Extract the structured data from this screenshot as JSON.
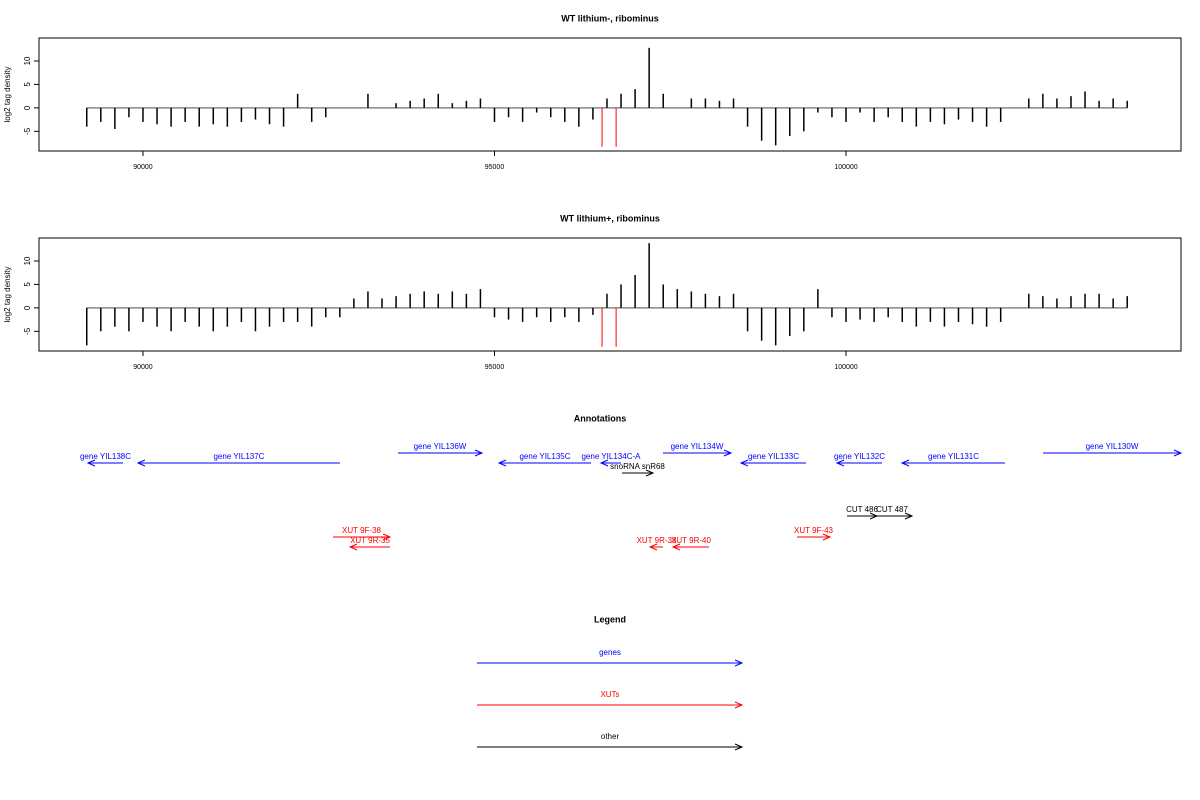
{
  "chart_data": [
    {
      "type": "bar",
      "title": "WT lithium-, ribominus",
      "y_label": "log2 tag density",
      "color": "#000000",
      "xlim": [
        88521,
        104765
      ],
      "ylim": [
        -9.2,
        14.9
      ],
      "xticks": [
        90000,
        95000,
        100000
      ],
      "yticks": [
        -5,
        0,
        5,
        10
      ],
      "x": [
        89200,
        89400,
        89600,
        89800,
        90000,
        90200,
        90400,
        90600,
        90800,
        91000,
        91200,
        91400,
        91600,
        91800,
        92000,
        92200,
        92400,
        92600,
        92800,
        93000,
        93200,
        93400,
        93600,
        93800,
        94000,
        94200,
        94400,
        94600,
        94800,
        95000,
        95200,
        95400,
        95600,
        95800,
        96000,
        96200,
        96400,
        96600,
        96800,
        97000,
        97200,
        97400,
        97600,
        97800,
        98000,
        98200,
        98400,
        98600,
        98800,
        99000,
        99200,
        99400,
        99600,
        99800,
        100000,
        100200,
        100400,
        100600,
        100800,
        101000,
        101200,
        101400,
        101600,
        101800,
        102000,
        102200,
        102400,
        102600,
        102800,
        103000,
        103200,
        103400,
        103600,
        103800,
        104000
      ],
      "values": [
        -4,
        -3,
        -4.5,
        -2,
        -3,
        -3.5,
        -4,
        -3,
        -4,
        -3.5,
        -4,
        -3,
        -2.5,
        -3.5,
        -4,
        3,
        -3,
        -2,
        0,
        0,
        3,
        0,
        1,
        1.5,
        2,
        3,
        1,
        1.5,
        2,
        -3,
        -2,
        -3,
        -1,
        -2,
        -3,
        -4,
        -2.5,
        2,
        3,
        4,
        12.8,
        3,
        0,
        2,
        2,
        1.5,
        2,
        -4,
        -7,
        -8,
        -6,
        -5,
        -1,
        -2,
        -3,
        -1,
        -3,
        -2,
        -3,
        -4,
        -3,
        -3.5,
        -2.5,
        -3,
        -4,
        -3,
        0,
        2,
        3,
        2,
        2.5,
        3.5,
        1.5,
        2,
        1.5
      ],
      "markers": {
        "x": [
          96530,
          96730
        ],
        "values": [
          -8.3,
          -8.3
        ],
        "color": "#ff0000"
      }
    },
    {
      "type": "bar",
      "title": "WT lithium+, ribominus",
      "y_label": "log2 tag density",
      "color": "#000000",
      "xlim": [
        88521,
        104765
      ],
      "ylim": [
        -9.2,
        14.9
      ],
      "xticks": [
        90000,
        95000,
        100000
      ],
      "yticks": [
        -5,
        0,
        5,
        10
      ],
      "x": [
        89200,
        89400,
        89600,
        89800,
        90000,
        90200,
        90400,
        90600,
        90800,
        91000,
        91200,
        91400,
        91600,
        91800,
        92000,
        92200,
        92400,
        92600,
        92800,
        93000,
        93200,
        93400,
        93600,
        93800,
        94000,
        94200,
        94400,
        94600,
        94800,
        95000,
        95200,
        95400,
        95600,
        95800,
        96000,
        96200,
        96400,
        96600,
        96800,
        97000,
        97200,
        97400,
        97600,
        97800,
        98000,
        98200,
        98400,
        98600,
        98800,
        99000,
        99200,
        99400,
        99600,
        99800,
        100000,
        100200,
        100400,
        100600,
        100800,
        101000,
        101200,
        101400,
        101600,
        101800,
        102000,
        102200,
        102400,
        102600,
        102800,
        103000,
        103200,
        103400,
        103600,
        103800,
        104000
      ],
      "values": [
        -8,
        -5,
        -4,
        -5,
        -3,
        -4,
        -5,
        -3,
        -4,
        -5,
        -4,
        -3,
        -5,
        -4,
        -3,
        -3,
        -4,
        -2,
        -2,
        2,
        3.5,
        2,
        2.5,
        3,
        3.5,
        3,
        3.5,
        3,
        4,
        -2,
        -2.5,
        -3,
        -2,
        -3,
        -2,
        -3,
        -1.5,
        3,
        5,
        7,
        13.8,
        5,
        4,
        3.5,
        3,
        2.5,
        3,
        -5,
        -7,
        -8,
        -6,
        -5,
        4,
        -2,
        -3,
        -2.5,
        -3,
        -2,
        -3,
        -4,
        -3,
        -4,
        -3,
        -3.5,
        -4,
        -3,
        0,
        3,
        2.5,
        2,
        2.5,
        3,
        3,
        2,
        2.5
      ],
      "markers": {
        "x": [
          96530,
          96730
        ],
        "values": [
          -8.3,
          -8.3
        ],
        "color": "#ff0000"
      }
    },
    {
      "type": "annotation",
      "title": "Annotations",
      "xlim": [
        88521,
        104765
      ],
      "series": [
        {
          "name": "genes",
          "color": "#0000ff",
          "features": [
            {
              "label": "gene YIL138C",
              "start": 89218,
              "end": 89716,
              "strand": "-"
            },
            {
              "label": "gene YIL137C",
              "start": 89929,
              "end": 92802,
              "strand": "-"
            },
            {
              "label": "gene YIL136W",
              "start": 93627,
              "end": 94822,
              "strand": "+"
            },
            {
              "label": "gene YIL135C",
              "start": 95064,
              "end": 96373,
              "strand": "-"
            },
            {
              "label": "gene YIL134C-A",
              "start": 96515,
              "end": 96799,
              "strand": "-"
            },
            {
              "label": "gene YIL134W",
              "start": 97397,
              "end": 98364,
              "strand": "+"
            },
            {
              "label": "gene YIL133C",
              "start": 98506,
              "end": 99431,
              "strand": "-"
            },
            {
              "label": "gene YIL132C",
              "start": 99872,
              "end": 100512,
              "strand": "-"
            },
            {
              "label": "gene YIL131C",
              "start": 100797,
              "end": 102262,
              "strand": "-"
            },
            {
              "label": "gene YIL130W",
              "start": 102802,
              "end": 104765,
              "strand": "+"
            }
          ]
        },
        {
          "name": "XUTs",
          "color": "#ff0000",
          "features": [
            {
              "label": "XUT 9F-38",
              "start": 92703,
              "end": 93514,
              "strand": "+"
            },
            {
              "label": "XUT 9R-35",
              "start": 92945,
              "end": 93514,
              "strand": "-"
            },
            {
              "label": "XUT 9R-38",
              "start": 97212,
              "end": 97397,
              "strand": "-"
            },
            {
              "label": "XUT 9R-40",
              "start": 97539,
              "end": 98051,
              "strand": "-"
            },
            {
              "label": "XUT 9F-43",
              "start": 99303,
              "end": 99772,
              "strand": "+"
            }
          ]
        },
        {
          "name": "other",
          "color": "#000000",
          "features": [
            {
              "label": "snoRNA snR68",
              "start": 96814,
              "end": 97255,
              "strand": "+"
            },
            {
              "label": "CUT 486",
              "start": 100014,
              "end": 100441,
              "strand": "+"
            },
            {
              "label": "CUT 487",
              "start": 100370,
              "end": 100939,
              "strand": "+"
            }
          ]
        }
      ]
    },
    {
      "type": "legend",
      "title": "Legend"
    }
  ]
}
